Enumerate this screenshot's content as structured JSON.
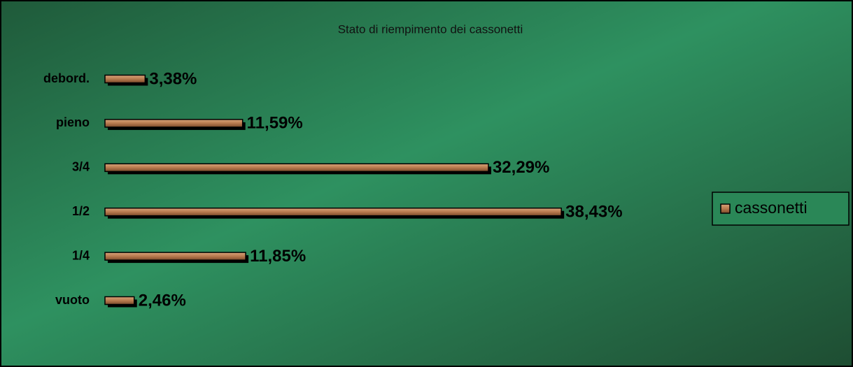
{
  "chart_data": {
    "type": "hbar",
    "title": "Stato di riempimento dei cassonetti",
    "categories": [
      "debord.",
      "pieno",
      "3/4",
      "1/2",
      "1/4",
      "vuoto"
    ],
    "series": [
      {
        "name": "cassonetti",
        "color": "#b87a4e",
        "values": [
          3.38,
          11.59,
          32.29,
          38.43,
          11.85,
          2.46
        ],
        "value_labels": [
          "3,38%",
          "11,59%",
          "32,29%",
          "38,43%",
          "11,85%",
          "2,46%"
        ]
      }
    ],
    "legend": "right"
  }
}
